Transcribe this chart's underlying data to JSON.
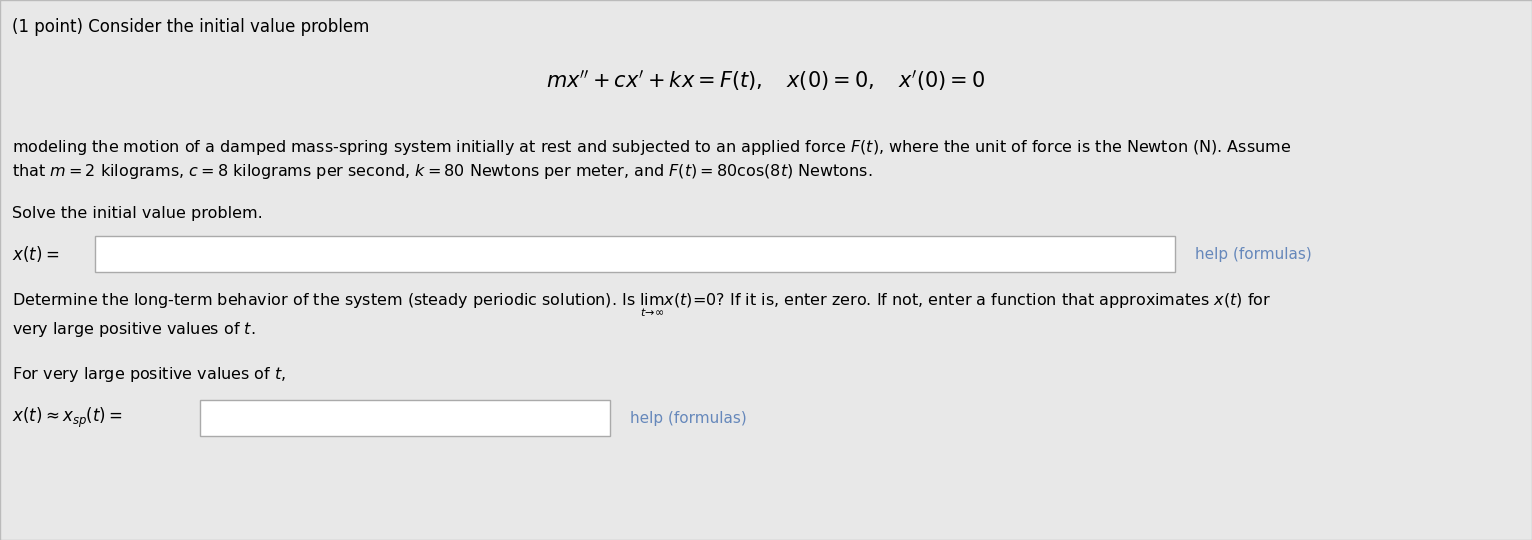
{
  "background_color": "#e8e8e8",
  "content_bg": "#e8e8e8",
  "title_text": "(1 point) Consider the initial value problem",
  "equation_main": "$mx'' + cx' + kx = F(t), \\quad x(0) = 0, \\quad x'(0) = 0$",
  "paragraph1_line1": "modeling the motion of a damped mass-spring system initially at rest and subjected to an applied force $F(t)$, where the unit of force is the Newton (N). Assume",
  "paragraph1_line2": "that $m = 2$ kilograms, $c = 8$ kilograms per second, $k = 80$ Newtons per meter, and $F(t) = 80\\cos(8t)$ Newtons.",
  "solve_text": "Solve the initial value problem.",
  "label_xt": "$x(t) =$",
  "help_formulas": "help (formulas)",
  "help_color": "#6688bb",
  "determine_line1": "Determine the long-term behavior of the system (steady periodic solution). Is $\\lim_{t \\to \\infty} x(t) = 0$? If it is, enter zero. If not, enter a function that approximates $x(t)$ for",
  "determine_line2": "very large positive values of $t$.",
  "for_very_text": "For very large positive values of $t$,",
  "label_xsp": "$x(t) \\approx x_{sp}(t) =$",
  "font_size_title": 12,
  "font_size_eq": 15,
  "font_size_body": 11.5,
  "font_size_label": 12,
  "font_size_help": 11
}
